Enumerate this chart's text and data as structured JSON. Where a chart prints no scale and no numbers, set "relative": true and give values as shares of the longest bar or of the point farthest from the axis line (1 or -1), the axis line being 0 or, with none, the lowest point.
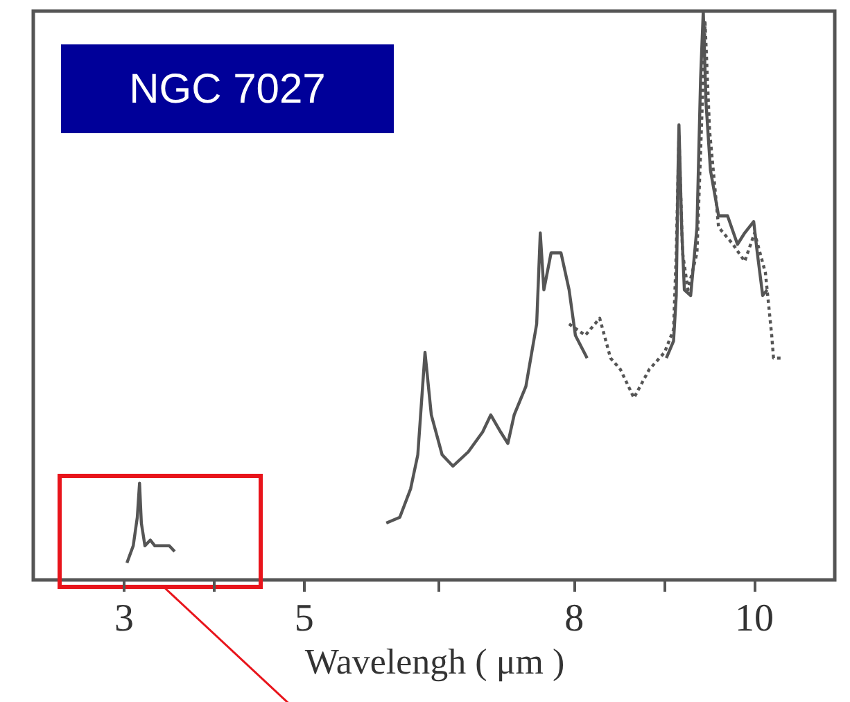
{
  "chart_data": {
    "type": "line",
    "relative": true,
    "xlabel": "Wavelengh ( μm )",
    "annotations": [
      "NGC 7027"
    ],
    "xlim": [
      2.0,
      10.9
    ],
    "xticks": [
      3,
      {
        "value": 4,
        "label": null
      },
      5,
      {
        "value": 6.5,
        "label": null
      },
      8,
      {
        "value": 9,
        "label": null
      },
      10
    ],
    "grid": false,
    "marker": "none",
    "series": [
      {
        "color": "#555555",
        "line_style": "solid",
        "x": [
          3.04,
          3.11,
          3.155,
          3.18,
          3.2,
          3.24,
          3.3,
          3.35,
          3.43,
          3.51,
          3.57,
          4.8,
          5.92,
          6.07,
          6.19,
          6.27,
          6.35,
          6.42,
          6.54,
          6.66,
          6.83,
          6.99,
          7.08,
          7.19,
          7.27,
          7.34,
          7.47,
          7.59,
          7.63,
          7.67,
          7.75,
          7.86,
          7.95,
          8.02,
          8.15,
          8.6,
          9.03,
          9.11,
          9.14,
          9.16,
          9.17,
          9.2,
          9.23,
          9.3,
          9.37,
          9.41,
          9.44,
          9.47,
          9.52,
          9.61,
          9.71,
          9.82,
          9.9,
          10.0,
          10.04,
          10.1,
          10.15
        ],
        "values": [
          0.03,
          0.06,
          0.11,
          0.17,
          0.1,
          0.06,
          0.07,
          0.06,
          0.06,
          0.06,
          0.05,
          null,
          0.1,
          0.11,
          0.16,
          0.22,
          0.4,
          0.29,
          0.22,
          0.2,
          0.225,
          0.26,
          0.29,
          0.26,
          0.24,
          0.29,
          0.34,
          0.45,
          0.61,
          0.51,
          0.575,
          0.575,
          0.51,
          0.43,
          0.39,
          null,
          0.39,
          0.42,
          0.5,
          0.72,
          0.8,
          0.62,
          0.51,
          0.5,
          0.62,
          0.88,
          1.0,
          0.84,
          0.72,
          0.64,
          0.64,
          0.59,
          0.61,
          0.63,
          0.575,
          0.5,
          0.51
        ]
      },
      {
        "color": "#555555",
        "line_style": "dotted",
        "x": [
          7.95,
          8.13,
          8.29,
          8.41,
          8.52,
          8.67,
          8.84,
          9.01,
          9.11,
          9.14,
          9.17,
          9.21,
          9.27,
          9.37,
          9.43,
          9.46,
          9.51,
          9.61,
          9.77,
          9.9,
          10.01,
          10.13,
          10.2,
          10.22,
          10.32
        ],
        "values": [
          0.45,
          0.43,
          0.46,
          0.39,
          0.37,
          0.32,
          0.37,
          0.4,
          0.44,
          0.575,
          0.78,
          0.575,
          0.51,
          0.575,
          0.84,
          0.98,
          0.79,
          0.62,
          0.59,
          0.56,
          0.61,
          0.54,
          0.43,
          0.39,
          0.39
        ]
      }
    ]
  }
}
